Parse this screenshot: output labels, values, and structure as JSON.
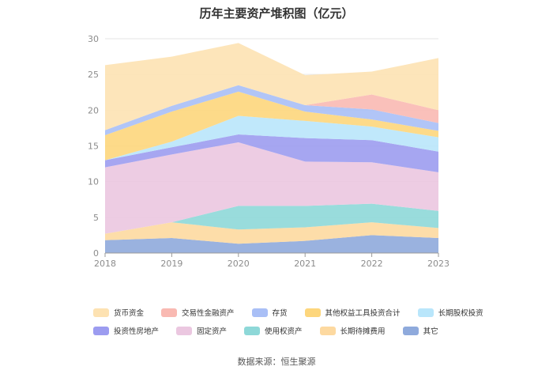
{
  "chart_data": {
    "type": "area",
    "stacked": true,
    "title": "历年主要资产堆积图（亿元）",
    "source": "数据来源：恒生聚源",
    "x": [
      "2018",
      "2019",
      "2020",
      "2021",
      "2022",
      "2023"
    ],
    "ylim": [
      0,
      30
    ],
    "yticks": [
      "0",
      "5",
      "10",
      "15",
      "20",
      "25",
      "30"
    ],
    "grid": true,
    "legend_position": "bottom",
    "series": [
      {
        "name": "其它",
        "color": "#8faadc",
        "values": [
          1.8,
          2.1,
          1.3,
          1.7,
          2.5,
          2.1
        ]
      },
      {
        "name": "长期待摊费用",
        "color": "#fdd9a0",
        "values": [
          0.9,
          2.2,
          2.0,
          1.9,
          1.8,
          1.4
        ]
      },
      {
        "name": "使用权资产",
        "color": "#8ed8d8",
        "values": [
          0.0,
          0.0,
          3.3,
          3.0,
          2.6,
          2.4
        ]
      },
      {
        "name": "固定资产",
        "color": "#ebc7e0",
        "values": [
          9.3,
          9.5,
          8.9,
          6.2,
          5.8,
          5.4
        ]
      },
      {
        "name": "投资性房地产",
        "color": "#9c9cf0",
        "values": [
          1.0,
          1.0,
          1.1,
          3.3,
          3.1,
          2.9
        ]
      },
      {
        "name": "长期股权投资",
        "color": "#b9e6fb",
        "values": [
          0.0,
          0.8,
          2.6,
          2.4,
          1.9,
          2.0
        ]
      },
      {
        "name": "其他权益工具投资合计",
        "color": "#fdd67c",
        "values": [
          3.5,
          4.2,
          3.4,
          1.3,
          1.0,
          0.9
        ]
      },
      {
        "name": "存货",
        "color": "#a9bff6",
        "values": [
          0.7,
          0.8,
          0.9,
          0.9,
          1.4,
          1.1
        ]
      },
      {
        "name": "交易性金融资产",
        "color": "#f9b9b2",
        "values": [
          0.0,
          0.0,
          0.0,
          0.0,
          2.1,
          1.8
        ]
      },
      {
        "name": "货币资金",
        "color": "#fde2b2",
        "values": [
          9.1,
          6.9,
          5.9,
          4.2,
          3.2,
          7.3
        ]
      }
    ],
    "legend_rows": [
      [
        "货币资金",
        "交易性金融资产",
        "存货",
        "其他权益工具投资合计",
        "长期股权投资"
      ],
      [
        "投资性房地产",
        "固定资产",
        "使用权资产",
        "长期待摊费用",
        "其它"
      ]
    ]
  }
}
